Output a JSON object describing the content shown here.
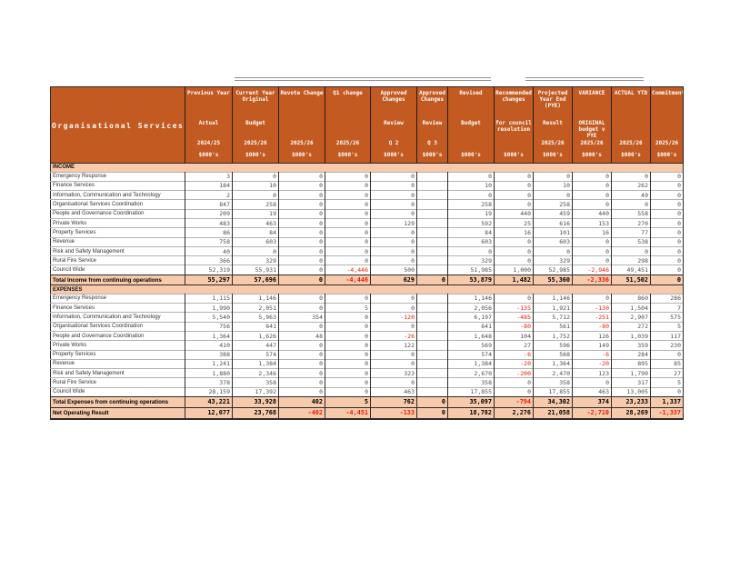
{
  "title": "Organisational Services",
  "colors": {
    "header_bg": "#C25A21",
    "peach_fill": "#F7CAAC",
    "negative_text": "#F01800",
    "grid_dark": "#2B2B2B",
    "grid_light": "#B3B3B3"
  },
  "columns": [
    {
      "group": "Previous Year",
      "sub": "Actual",
      "year": "2024/25",
      "unit": "$000's"
    },
    {
      "group": "Current Year Original",
      "sub": "Budget",
      "year": "2025/26",
      "unit": "$000's"
    },
    {
      "group": "Revote Change",
      "sub": "",
      "year": "2025/26",
      "unit": "$000's"
    },
    {
      "group": "Q1 change",
      "sub": "",
      "year": "2025/26",
      "unit": "$000's"
    },
    {
      "group": "Approved Changes",
      "sub": "Review",
      "year": "Q 2",
      "unit": "$000's"
    },
    {
      "group": "Approved Changes",
      "sub": "Review",
      "year": "Q 3",
      "unit": "$000's"
    },
    {
      "group": "Revised",
      "sub": "Budget",
      "year": "",
      "unit": "$000's"
    },
    {
      "group": "Recommended changes",
      "sub": "for council resolution",
      "year": "",
      "unit": "$000's"
    },
    {
      "group": "Projected Year End (PYE)",
      "sub": "Result",
      "year": "2025/26",
      "unit": "$000's"
    },
    {
      "group": "VARIANCE",
      "sub": "ORIGINAL budget v PYE",
      "year": "2025/26",
      "unit": "$000's"
    },
    {
      "group": "ACTUAL YTD",
      "sub": "",
      "year": "2025/26",
      "unit": "$000's"
    },
    {
      "group": "Commitment",
      "sub": "",
      "year": "2025/26",
      "unit": "$000's"
    }
  ],
  "sections": [
    {
      "name": "INCOME",
      "rows": [
        {
          "label": "Emergency Response",
          "values": [
            "3",
            "0",
            "0",
            "0",
            "0",
            "",
            "0",
            "0",
            "0",
            "0",
            "0",
            "0"
          ]
        },
        {
          "label": "Finance Services",
          "values": [
            "184",
            "10",
            "0",
            "0",
            "0",
            "",
            "10",
            "0",
            "10",
            "0",
            "262",
            "0"
          ]
        },
        {
          "label": "Information, Communication and Technology",
          "values": [
            "2",
            "0",
            "0",
            "0",
            "0",
            "",
            "0",
            "0",
            "0",
            "0",
            "49",
            "0"
          ]
        },
        {
          "label": "Organisational Services Coordination",
          "values": [
            "847",
            "258",
            "0",
            "0",
            "0",
            "",
            "258",
            "0",
            "258",
            "0",
            "0",
            "0"
          ]
        },
        {
          "label": "People and Governance Coordination",
          "values": [
            "209",
            "19",
            "0",
            "0",
            "0",
            "",
            "19",
            "440",
            "459",
            "440",
            "558",
            "0"
          ]
        },
        {
          "label": "Private Works",
          "values": [
            "483",
            "463",
            "0",
            "0",
            "129",
            "",
            "592",
            "25",
            "616",
            "153",
            "270",
            "0"
          ]
        },
        {
          "label": "Property Services",
          "values": [
            "86",
            "84",
            "0",
            "0",
            "0",
            "",
            "84",
            "16",
            "101",
            "16",
            "77",
            "0"
          ]
        },
        {
          "label": "Revenue",
          "values": [
            "758",
            "603",
            "0",
            "0",
            "0",
            "",
            "603",
            "0",
            "603",
            "0",
            "538",
            "0"
          ]
        },
        {
          "label": "Risk and Safety Management",
          "values": [
            "40",
            "0",
            "0",
            "0",
            "0",
            "",
            "0",
            "0",
            "0",
            "0",
            "0",
            "0"
          ]
        },
        {
          "label": "Rural Fire Service",
          "values": [
            "366",
            "329",
            "0",
            "0",
            "0",
            "",
            "329",
            "0",
            "329",
            "0",
            "298",
            "0"
          ]
        },
        {
          "label": "Council Wide",
          "values": [
            "52,319",
            "55,931",
            "0",
            "-4,446",
            "500",
            "",
            "51,985",
            "1,000",
            "52,985",
            "-2,946",
            "49,451",
            "0"
          ]
        }
      ],
      "total": {
        "label": "Total Income from continuing operations",
        "values": [
          "55,297",
          "57,696",
          "0",
          "-4,446",
          "629",
          "0",
          "53,879",
          "1,482",
          "55,360",
          "-2,336",
          "51,502",
          "0"
        ]
      }
    },
    {
      "name": "EXPENSES",
      "rows": [
        {
          "label": "Emergency Response",
          "values": [
            "1,115",
            "1,146",
            "0",
            "0",
            "0",
            "",
            "1,146",
            "0",
            "1,146",
            "0",
            "860",
            "286"
          ]
        },
        {
          "label": "Finance Services",
          "values": [
            "1,990",
            "2,051",
            "0",
            "5",
            "0",
            "",
            "2,056",
            "-135",
            "1,921",
            "-130",
            "1,504",
            "7"
          ]
        },
        {
          "label": "Information, Communication and Technology",
          "values": [
            "5,540",
            "5,963",
            "354",
            "0",
            "-120",
            "",
            "6,197",
            "-485",
            "5,712",
            "-251",
            "2,907",
            "575"
          ]
        },
        {
          "label": "Organisational Services Coordination",
          "values": [
            "756",
            "641",
            "0",
            "0",
            "0",
            "",
            "641",
            "-80",
            "561",
            "-80",
            "272",
            "5"
          ]
        },
        {
          "label": "People and Governance Coordination",
          "values": [
            "1,364",
            "1,626",
            "48",
            "0",
            "-26",
            "",
            "1,648",
            "104",
            "1,752",
            "126",
            "1,039",
            "117"
          ]
        },
        {
          "label": "Private Works",
          "values": [
            "410",
            "447",
            "0",
            "0",
            "122",
            "",
            "569",
            "27",
            "596",
            "149",
            "359",
            "230"
          ]
        },
        {
          "label": "Property Services",
          "values": [
            "388",
            "574",
            "0",
            "0",
            "0",
            "",
            "574",
            "-6",
            "568",
            "-6",
            "284",
            "0"
          ]
        },
        {
          "label": "Revenue",
          "values": [
            "1,241",
            "1,384",
            "0",
            "0",
            "0",
            "",
            "1,384",
            "-20",
            "1,364",
            "-20",
            "895",
            "85"
          ]
        },
        {
          "label": "Risk and Safety Management",
          "values": [
            "1,880",
            "2,346",
            "0",
            "0",
            "323",
            "",
            "2,670",
            "-200",
            "2,470",
            "123",
            "1,790",
            "27"
          ]
        },
        {
          "label": "Rural Fire Service",
          "values": [
            "378",
            "358",
            "0",
            "0",
            "0",
            "",
            "358",
            "0",
            "358",
            "0",
            "317",
            "5"
          ]
        },
        {
          "label": "Council Wide",
          "values": [
            "28,159",
            "17,392",
            "0",
            "0",
            "463",
            "",
            "17,855",
            "0",
            "17,855",
            "463",
            "13,005",
            "0"
          ]
        }
      ],
      "total": {
        "label": "Total Expenses from continuing operations",
        "values": [
          "43,221",
          "33,928",
          "402",
          "5",
          "762",
          "0",
          "35,097",
          "-794",
          "34,302",
          "374",
          "23,233",
          "1,337"
        ]
      }
    }
  ],
  "net": {
    "label": "Net Operating Result",
    "values": [
      "12,077",
      "23,768",
      "-402",
      "-4,451",
      "-133",
      "0",
      "18,782",
      "2,276",
      "21,058",
      "-2,710",
      "28,269",
      "-1,337"
    ]
  }
}
